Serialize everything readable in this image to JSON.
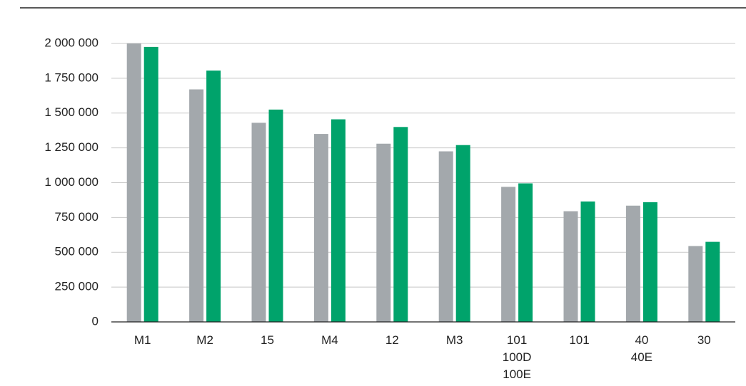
{
  "chart_data": {
    "type": "bar",
    "title": "",
    "xlabel": "",
    "ylabel": "",
    "ylim": [
      0,
      2000000
    ],
    "yticks": [
      0,
      250000,
      500000,
      750000,
      1000000,
      1250000,
      1500000,
      1750000,
      2000000
    ],
    "ytick_labels": [
      "0",
      "250 000",
      "500 000",
      "750 000",
      "1 000 000",
      "1 250 000",
      "1 500 000",
      "1 750 000",
      "2 000 000"
    ],
    "grid": true,
    "legend": "none",
    "categories": [
      [
        "M1"
      ],
      [
        "M2"
      ],
      [
        "15"
      ],
      [
        "M4"
      ],
      [
        "12"
      ],
      [
        "M3"
      ],
      [
        "101",
        "100D",
        "100E"
      ],
      [
        "101"
      ],
      [
        "40",
        "40E"
      ],
      [
        "30"
      ]
    ],
    "series": [
      {
        "color": "#a3a8ac",
        "values": [
          2000000,
          1670000,
          1430000,
          1350000,
          1280000,
          1225000,
          970000,
          795000,
          835000,
          545000
        ]
      },
      {
        "color": "#00a36b",
        "values": [
          1975000,
          1805000,
          1525000,
          1455000,
          1400000,
          1270000,
          995000,
          865000,
          860000,
          575000
        ]
      }
    ]
  }
}
